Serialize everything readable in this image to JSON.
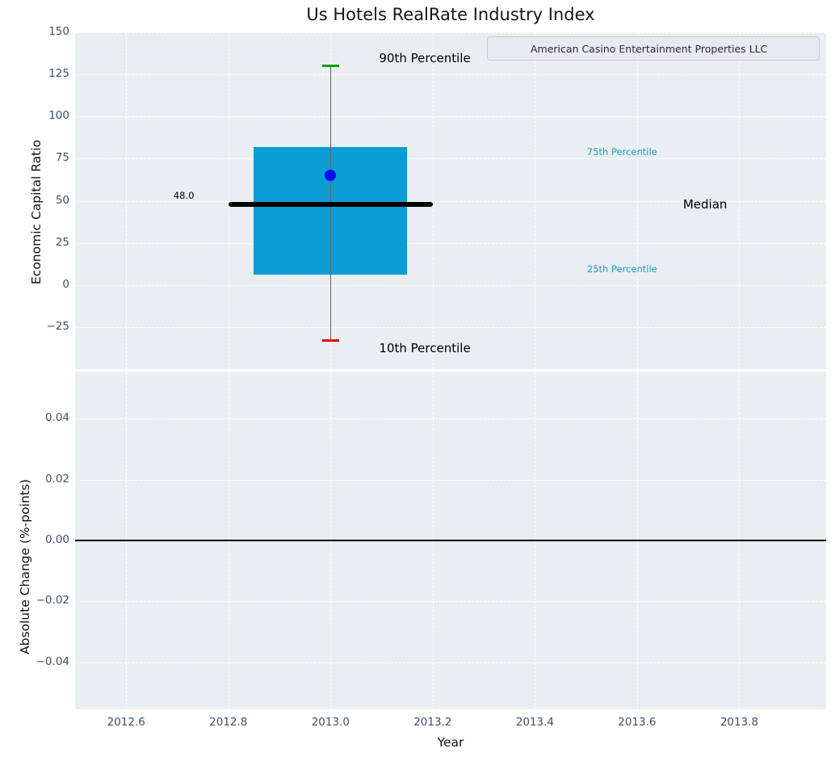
{
  "title": "Us Hotels RealRate Industry Index",
  "colors": {
    "plot_background": "#e9eef0",
    "grid": "#ffffff",
    "tick_label": "#3e5067",
    "box_fill": "#0a9cd4",
    "median_line": "#000000",
    "whisker_line": "#666666",
    "cap_90th": "#0c9a0c",
    "cap_10th": "#f00000",
    "company_marker": "#0b0bef",
    "legend_line": "#0b0bef",
    "annotation_teal": "#1f9ace",
    "zero_line": "#000000"
  },
  "chart_data": [
    {
      "type": "boxplot",
      "title": "Us Hotels RealRate Industry Index",
      "ylabel": "Economic Capital Ratio",
      "xlabel": "",
      "xlim": [
        2012.5,
        2013.97
      ],
      "ylim": [
        -50,
        150
      ],
      "grid": true,
      "ytick_values": [
        150,
        125,
        100,
        75,
        50,
        25,
        0,
        -25
      ],
      "ytick_labels": [
        "150",
        "125",
        "100",
        "75",
        "50",
        "25",
        "0",
        "−25"
      ],
      "xtick_values": [
        2012.6,
        2012.8,
        2013.0,
        2013.2,
        2013.4,
        2013.6,
        2013.8
      ],
      "legend": {
        "position": "upper right",
        "label": "American Casino Entertainment Properties LLC"
      },
      "box": {
        "x": 2013.0,
        "box_width": 0.3,
        "p10": -33,
        "p25": 6,
        "median": 48,
        "p75": 82,
        "p90": 130,
        "company_value": 65,
        "median_label": "48.0",
        "median_line_width": 0.4,
        "cap_half_width": 0.017
      },
      "annotations": [
        {
          "text": "90th Percentile",
          "x": 2013.095,
          "y": 134.5,
          "color": "#000000",
          "size": 15,
          "anchor": "left"
        },
        {
          "text": "10th Percentile",
          "x": 2013.095,
          "y": -37.5,
          "color": "#000000",
          "size": 15,
          "anchor": "left"
        },
        {
          "text": "75th Percentile",
          "x": 2013.502,
          "y": 79,
          "color": "#1f9ace",
          "size": 11.5,
          "anchor": "left"
        },
        {
          "text": "25th Percentile",
          "x": 2013.502,
          "y": 9.5,
          "color": "#1f9ace",
          "size": 11.5,
          "anchor": "left"
        },
        {
          "text": "Median",
          "x": 2013.69,
          "y": 48,
          "color": "#000000",
          "size": 15,
          "anchor": "left"
        },
        {
          "text": "48.0",
          "x": 2012.733,
          "y": 53,
          "color": "#000000",
          "size": 11.5,
          "anchor": "right"
        }
      ]
    },
    {
      "type": "line",
      "ylabel": "Absolute Change (%-points)",
      "xlabel": "Year",
      "xlim": [
        2012.5,
        2013.97
      ],
      "ylim": [
        -0.0555,
        0.0555
      ],
      "grid": true,
      "ytick_values": [
        0.04,
        0.02,
        0,
        -0.02,
        -0.04
      ],
      "ytick_labels": [
        "0.04",
        "0.02",
        "0.00",
        "−0.02",
        "−0.04"
      ],
      "xtick_values": [
        2012.6,
        2012.8,
        2013.0,
        2013.2,
        2013.4,
        2013.6,
        2013.8
      ],
      "xtick_labels": [
        "2012.6",
        "2012.8",
        "2013.0",
        "2013.2",
        "2013.4",
        "2013.6",
        "2013.8"
      ],
      "zero_line": 0,
      "series": []
    }
  ]
}
